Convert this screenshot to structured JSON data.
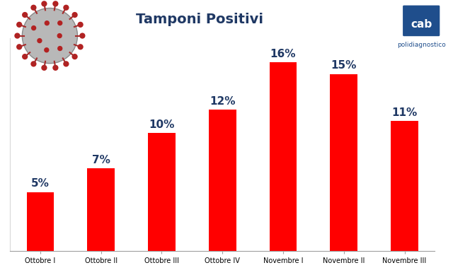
{
  "chart_data": {
    "type": "bar",
    "title": "Tamponi Positivi",
    "categories": [
      "Ottobre I",
      "Ottobre II",
      "Ottobre III",
      "Ottobre IV",
      "Novembre I",
      "Novembre II",
      "Novembre III"
    ],
    "values": [
      5,
      7,
      10,
      12,
      16,
      15,
      11
    ],
    "value_labels": [
      "5%",
      "7%",
      "10%",
      "12%",
      "16%",
      "15%",
      "11%"
    ],
    "data_labels": true,
    "color": "#ff0000",
    "ylim": [
      0,
      18
    ],
    "yticks": [],
    "grid": false,
    "tick_labels": "x",
    "annotations": [
      "cab",
      "polidiagnostico"
    ]
  }
}
